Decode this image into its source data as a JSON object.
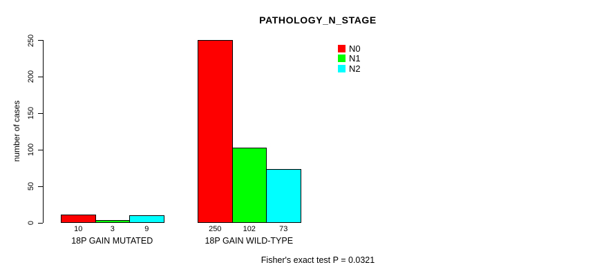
{
  "chart_data": {
    "type": "bar",
    "title": "PATHOLOGY_N_STAGE",
    "xlabel": "",
    "ylabel": "number of cases",
    "ylim": [
      0,
      250
    ],
    "yticks": [
      0,
      50,
      100,
      150,
      200,
      250
    ],
    "grid": false,
    "legend_position": "top-right",
    "bar_value_labels": true,
    "categories": [
      "18P GAIN MUTATED",
      "18P GAIN WILD-TYPE"
    ],
    "series": [
      {
        "name": "N0",
        "color": "#ff0000",
        "values": [
          10,
          250
        ]
      },
      {
        "name": "N1",
        "color": "#00ff00",
        "values": [
          3,
          102
        ]
      },
      {
        "name": "N2",
        "color": "#00ffff",
        "values": [
          9,
          73
        ]
      }
    ],
    "annotation": "Fisher's exact test P = 0.0321"
  }
}
